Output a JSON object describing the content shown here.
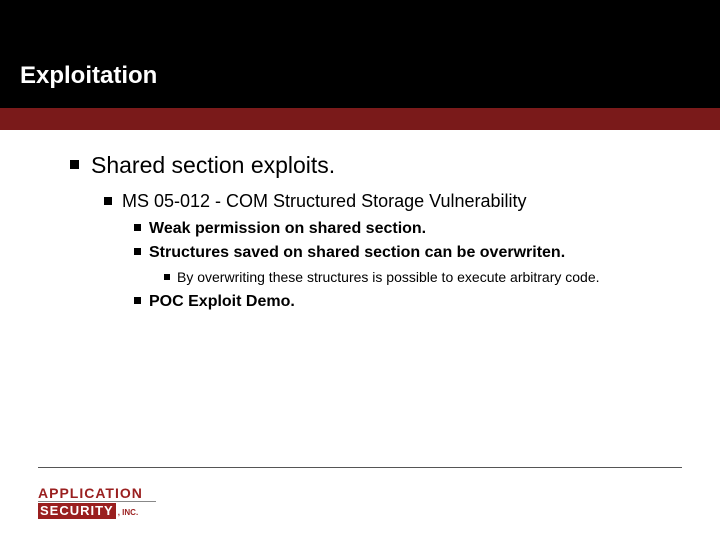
{
  "colors": {
    "header_bg": "#000000",
    "band_bg": "#7a1a1a",
    "page_bg": "#ffffff",
    "title_color": "#ffffff",
    "text_color": "#000000",
    "logo_color": "#9a1f1f",
    "rule_color": "#555555"
  },
  "typography": {
    "title_fontsize": 24,
    "lvl1_fontsize": 23,
    "lvl2_fontsize": 18,
    "lvl3_fontsize": 16,
    "lvl4_fontsize": 14,
    "font_family": "Arial"
  },
  "slide": {
    "title": "Exploitation",
    "bullets": {
      "l1": "Shared section exploits.",
      "l2": "MS 05-012 - COM Structured Storage Vulnerability",
      "l3a": "Weak permission on shared section.",
      "l3b": "Structures saved on shared section can be overwriten.",
      "l4": "By overwriting these structures is possible to execute arbitrary code.",
      "l3c": "POC Exploit Demo."
    }
  },
  "logo": {
    "line1": "APPLICATION",
    "line2a": "SECURITY",
    "line2b": ", INC."
  }
}
